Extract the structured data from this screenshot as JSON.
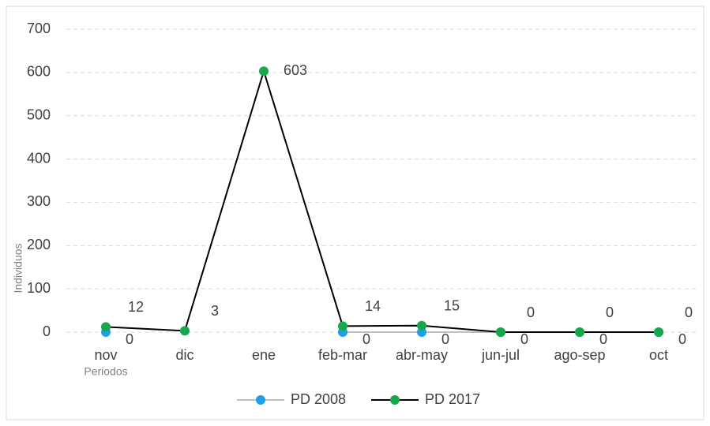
{
  "chart_data": {
    "type": "line",
    "categories": [
      "nov",
      "dic",
      "ene",
      "feb-mar",
      "abr-may",
      "jun-jul",
      "ago-sep",
      "oct"
    ],
    "series": [
      {
        "name": "PD 2008",
        "color": "#1ea1e4",
        "line_color": "#bfbfbf",
        "values": [
          0,
          null,
          null,
          0,
          0,
          0,
          0,
          0
        ]
      },
      {
        "name": "PD 2017",
        "color": "#17a84b",
        "line_color": "#000000",
        "values": [
          12,
          3,
          603,
          14,
          15,
          0,
          0,
          0
        ]
      }
    ],
    "y_label": "Individuos",
    "x_label": "Periodos",
    "ylim": [
      0,
      700
    ],
    "yticks": [
      0,
      100,
      200,
      300,
      400,
      500,
      600,
      700
    ],
    "grid": true,
    "legend": "bottom"
  }
}
